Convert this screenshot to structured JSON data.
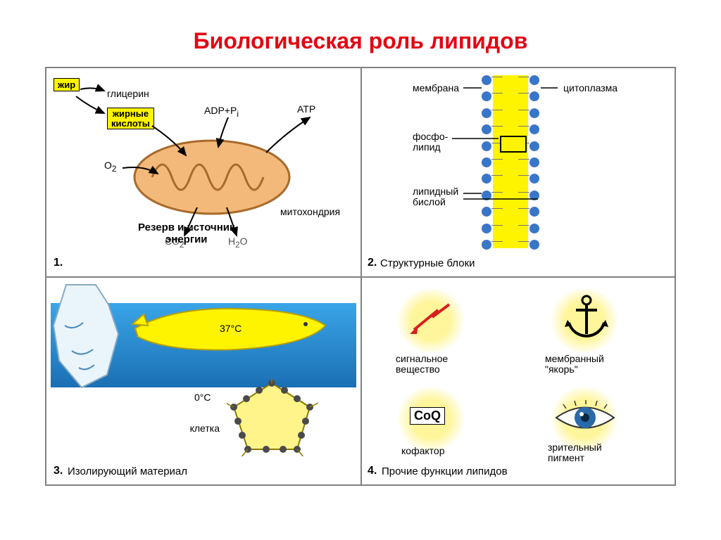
{
  "title": "Биологическая роль липидов",
  "colors": {
    "title": "#e30613",
    "border": "#808080",
    "yellow": "#fff400",
    "glow": "#fff59a",
    "mito_fill": "#f2b97a",
    "mito_stroke": "#a86a2a",
    "water_top": "#3aa5e8",
    "water_bot": "#1b6fb3",
    "membrane_blue": "#3a76c8",
    "red": "#d62020",
    "iris": "#2a6aa8"
  },
  "panel1": {
    "num": "1.",
    "fat": "жир",
    "glycerol": "глицерин",
    "fatty_acids_l1": "жирные",
    "fatty_acids_l2": "кислоты",
    "o2": "O",
    "o2_sub": "2",
    "adp": "ADP+P",
    "adp_sub": "i",
    "atp": "ATP",
    "co2": "CO",
    "co2_sub": "2",
    "h2o": "H",
    "h2o_sub": "2",
    "h2o_tail": "O",
    "mito": "митохондрия",
    "caption_l1": "Резерв и источник",
    "caption_l2": "энергии"
  },
  "panel2": {
    "num": "2.",
    "caption": "Структурные блоки",
    "membrane": "мембрана",
    "cytoplasm": "цитоплазма",
    "phospho_l1": "фосфо-",
    "phospho_l2": "липид",
    "bilayer_l1": "липидный",
    "bilayer_l2": "бислой",
    "n_heads": 11
  },
  "panel3": {
    "num": "3.",
    "caption": "Изолирующий материал",
    "t_body": "37°C",
    "t_water": "0°C",
    "cell": "клетка"
  },
  "panel4": {
    "num": "4.",
    "caption": "Прочие функции липидов",
    "signal_l1": "сигнальное",
    "signal_l2": "вещество",
    "anchor_l1": "мембранный",
    "anchor_l2": "\"якорь\"",
    "coq_box": "CoQ",
    "cofactor": "кофактор",
    "pigment_l1": "зрительный",
    "pigment_l2": "пигмент"
  }
}
